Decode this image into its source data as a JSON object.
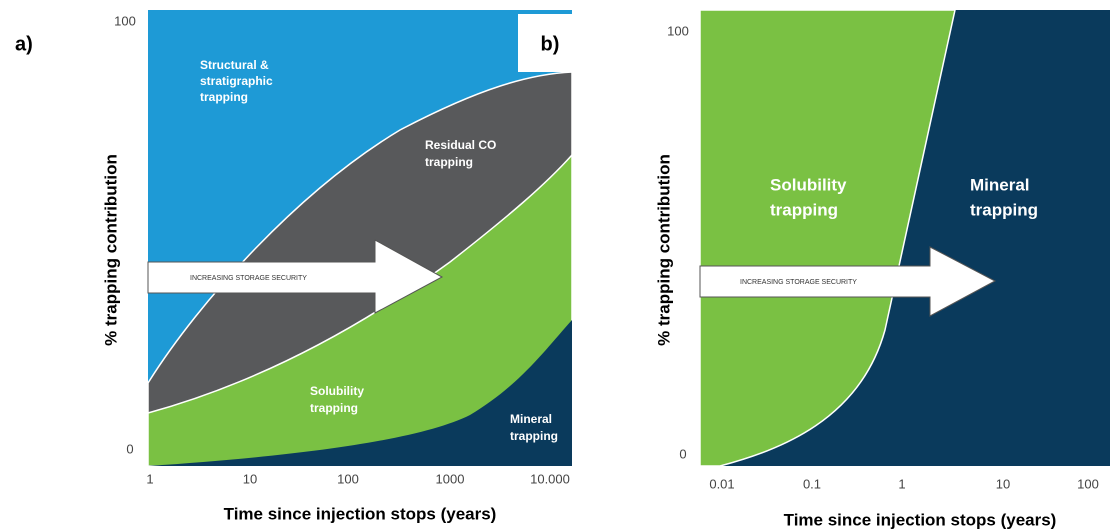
{
  "panel_a": {
    "label": "a)",
    "inset_label": "b)",
    "y_axis_label": "% trapping contribution",
    "y_ticks": [
      "100",
      "0"
    ],
    "x_ticks": [
      "1",
      "10",
      "100",
      "1000",
      "10.000"
    ],
    "x_axis_label": "Time since injection stops (years)",
    "arrow_text": "INCREASING STORAGE SECURITY",
    "regions": {
      "structural": [
        "Structural &",
        "stratigraphic",
        "trapping"
      ],
      "residual": [
        "Residual CO",
        "trapping"
      ],
      "solubility": [
        "Solubility",
        "trapping"
      ],
      "mineral": [
        "Mineral",
        "trapping"
      ]
    }
  },
  "panel_b": {
    "y_axis_label": "% trapping contribution",
    "y_ticks": [
      "100",
      "0"
    ],
    "x_ticks": [
      "0.01",
      "0.1",
      "1",
      "10",
      "100"
    ],
    "x_axis_label": "Time since injection stops (years)",
    "arrow_text": "INCREASING STORAGE SECURITY",
    "regions": {
      "solubility": [
        "Solubility",
        "trapping"
      ],
      "mineral": [
        "Mineral",
        "trapping"
      ]
    }
  }
}
